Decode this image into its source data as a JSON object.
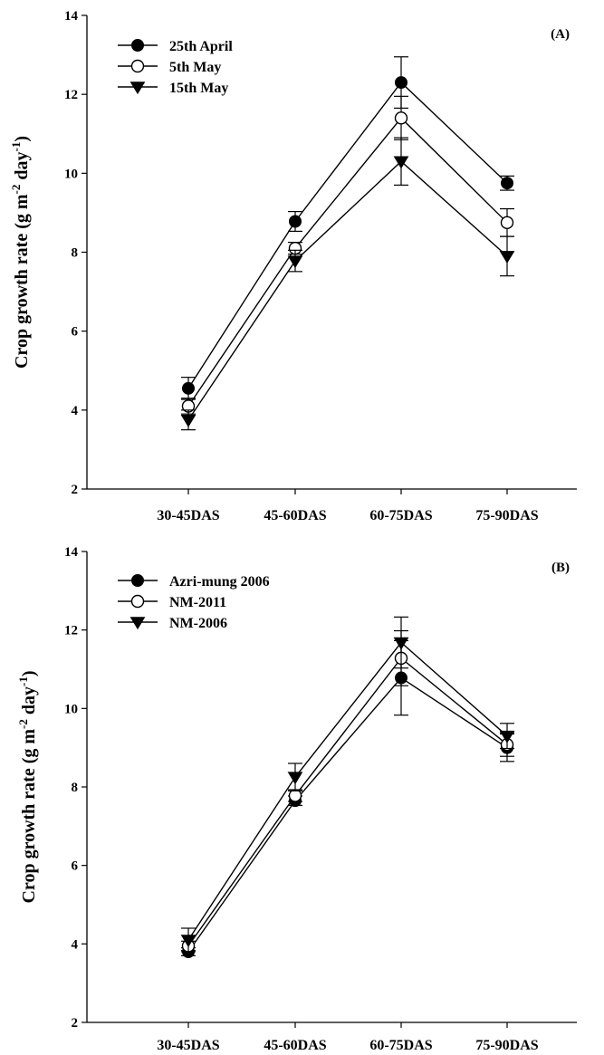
{
  "chart_data": [
    {
      "type": "line",
      "panel_label": "(A)",
      "ylabel": {
        "main": "Crop growth rate (g m",
        "sup1": "-2",
        "mid": " day",
        "sup2": "-1",
        "end": ")"
      },
      "ylim": [
        2,
        14
      ],
      "yticks": [
        "2",
        "4",
        "6",
        "8",
        "10",
        "12",
        "14"
      ],
      "categories": [
        "30-45DAS",
        "45-60DAS",
        "60-75DAS",
        "75-90DAS"
      ],
      "legend_position": "top-left",
      "series": [
        {
          "name": "25th April",
          "marker": "filled-circle",
          "values": [
            4.55,
            8.78,
            12.3,
            9.75
          ],
          "errors": [
            0.28,
            0.25,
            0.65,
            0.18
          ]
        },
        {
          "name": "5th May",
          "marker": "open-circle",
          "values": [
            4.1,
            8.1,
            11.4,
            8.75
          ],
          "errors": [
            0.2,
            0.15,
            0.55,
            0.35
          ]
        },
        {
          "name": "15th May",
          "marker": "filled-triangle-down",
          "values": [
            3.75,
            7.78,
            10.3,
            7.9
          ],
          "errors": [
            0.25,
            0.27,
            0.6,
            0.5
          ]
        }
      ]
    },
    {
      "type": "line",
      "panel_label": "(B)",
      "ylabel": {
        "main": "Crop growth rate (g m",
        "sup1": "-2",
        "mid": " day",
        "sup2": "-1",
        "end": ")"
      },
      "ylim": [
        2,
        14
      ],
      "yticks": [
        "2",
        "4",
        "6",
        "8",
        "10",
        "12",
        "14"
      ],
      "categories": [
        "30-45DAS",
        "45-60DAS",
        "60-75DAS",
        "75-90DAS"
      ],
      "legend_position": "top-left",
      "series": [
        {
          "name": "Azri-mung 2006",
          "marker": "filled-circle",
          "values": [
            3.8,
            7.65,
            10.78,
            9.0
          ],
          "errors": [
            0.1,
            0.12,
            0.95,
            0.35
          ]
        },
        {
          "name": "NM-2011",
          "marker": "open-circle",
          "values": [
            3.95,
            7.78,
            11.28,
            9.08
          ],
          "errors": [
            0.12,
            0.15,
            0.7,
            0.3
          ]
        },
        {
          "name": "NM-2006",
          "marker": "filled-triangle-down",
          "values": [
            4.1,
            8.25,
            11.68,
            9.3
          ],
          "errors": [
            0.3,
            0.35,
            0.65,
            0.32
          ]
        }
      ]
    }
  ]
}
